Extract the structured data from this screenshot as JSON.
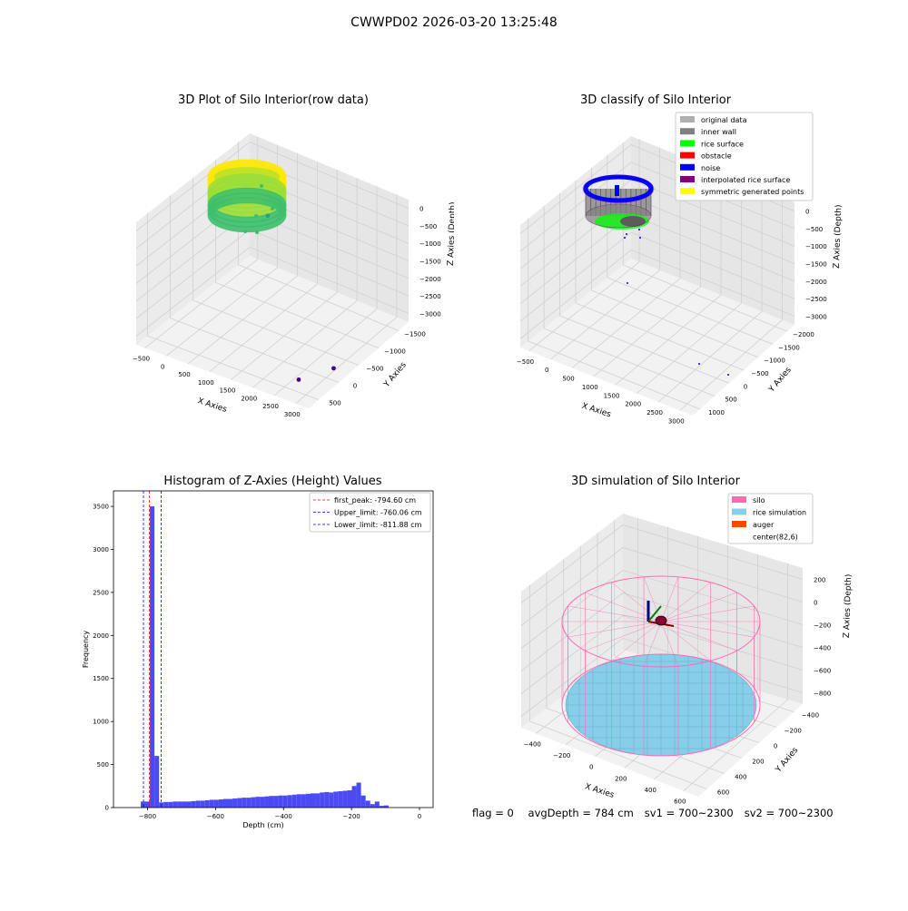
{
  "figure_title": "CWWPD02 2026-03-20 13:25:48",
  "status": {
    "flag": "flag = 0",
    "avg_depth": "avgDepth = 784 cm",
    "sv1": "sv1 = 700~2300",
    "sv2": "sv2 = 700~2300"
  },
  "colors": {
    "raw_gradient": [
      "#ffe800",
      "#9bde36",
      "#3dbf6d",
      "#2a8d8a",
      "#45067a"
    ],
    "original_data": "#b0b0b0",
    "inner_wall": "#808080",
    "rice_surface": "#00ff00",
    "obstacle": "#ff0000",
    "noise": "#0000ff",
    "interpolated": "#800080",
    "symmetric": "#ffff00",
    "histogram_bar": "#4b4bf5",
    "silo": "#ff69b4",
    "rice_simulation": "#87ceeb",
    "auger": "#ff4500"
  },
  "chart_data": [
    {
      "type": "scatter",
      "projection": "3d",
      "title": "3D Plot of Silo Interior(row data)",
      "xlabel": "X Axies",
      "ylabel": "Y Axies",
      "zlabel": "Z Axies (Depth)",
      "x_ticks": [
        "−500",
        "0",
        "500",
        "1000",
        "1500",
        "2000",
        "2500",
        "3000"
      ],
      "y_ticks": [
        "−1500",
        "−1000",
        "−500",
        "0",
        "500"
      ],
      "z_ticks": [
        "0",
        "−500",
        "−1000",
        "−1500",
        "−2000",
        "−2500",
        "−3000"
      ],
      "xlim": [
        -600,
        3100
      ],
      "ylim": [
        -1700,
        650
      ],
      "zlim": [
        -3300,
        100
      ],
      "grid": true,
      "outlier_points": [
        {
          "x": 150,
          "y": 350,
          "z": -1500,
          "color": "#2a9d8f"
        },
        {
          "x": 2700,
          "y": -1500,
          "z": -2900,
          "color": "#45067a"
        },
        {
          "x": 2900,
          "y": -900,
          "z": -3100,
          "color": "#45067a"
        }
      ]
    },
    {
      "type": "scatter",
      "projection": "3d",
      "title": "3D classify of Silo Interior",
      "xlabel": "X Axies",
      "ylabel": "Y Axies",
      "zlabel": "Z Axies (Depth)",
      "x_ticks": [
        "−500",
        "0",
        "500",
        "1000",
        "1500",
        "2000",
        "2500",
        "3000"
      ],
      "y_ticks": [
        "−2000",
        "−1500",
        "−1000",
        "−500",
        "0",
        "500",
        "1000"
      ],
      "z_ticks": [
        "0",
        "−500",
        "−1000",
        "−1500",
        "−2000",
        "−2500",
        "−3000"
      ],
      "xlim": [
        -600,
        3100
      ],
      "ylim": [
        -2200,
        1200
      ],
      "zlim": [
        -3300,
        100
      ],
      "grid": true,
      "legend_position": "top-right",
      "legend": [
        {
          "label": "original data",
          "color": "#b0b0b0"
        },
        {
          "label": "inner wall",
          "color": "#808080"
        },
        {
          "label": "rice surface",
          "color": "#00ff00"
        },
        {
          "label": "obstacle",
          "color": "#ff0000"
        },
        {
          "label": "noise",
          "color": "#0000ff"
        },
        {
          "label": "interpolated rice surface",
          "color": "#800080"
        },
        {
          "label": "symmetric generated points",
          "color": "#ffff00"
        }
      ]
    },
    {
      "type": "bar",
      "title": "Histogram of Z-Axies (Height) Values",
      "xlabel": "Depth (cm)",
      "ylabel": "Frequency",
      "xlim": [
        -900,
        40
      ],
      "ylim": [
        0,
        3680
      ],
      "x_ticks": [
        -800,
        -600,
        -400,
        -200,
        0
      ],
      "y_ticks": [
        0,
        500,
        1000,
        1500,
        2000,
        2500,
        3000,
        3500
      ],
      "bin_start": -820,
      "bin_width": 13.5,
      "values": [
        70,
        70,
        3500,
        600,
        60,
        65,
        65,
        70,
        70,
        70,
        70,
        75,
        80,
        80,
        85,
        90,
        90,
        95,
        100,
        100,
        105,
        110,
        115,
        115,
        120,
        125,
        125,
        130,
        135,
        135,
        140,
        140,
        145,
        150,
        155,
        155,
        160,
        165,
        165,
        175,
        180,
        175,
        185,
        190,
        195,
        200,
        250,
        290,
        140,
        80,
        40,
        70,
        20,
        25
      ],
      "lines": [
        {
          "value": -794.6,
          "label": "first_peak: -794.60 cm",
          "color": "#ff0000"
        },
        {
          "value": -760.06,
          "label": "Upper_limit: -760.06 cm",
          "color": "#0000ff"
        },
        {
          "value": -811.88,
          "label": "Lower_limit: -811.88 cm",
          "color": "#0000ff"
        }
      ],
      "legend_position": "top-right",
      "grid": false
    },
    {
      "type": "surface",
      "projection": "3d",
      "title": "3D simulation of Silo Interior",
      "xlabel": "X Axies",
      "ylabel": "Y Axies",
      "zlabel": "Z Axies (Depth)",
      "x_ticks": [
        "−400",
        "−200",
        "0",
        "200",
        "400",
        "600"
      ],
      "y_ticks": [
        "−400",
        "−200",
        "0",
        "200",
        "400",
        "600"
      ],
      "z_ticks": [
        "200",
        "0",
        "−200",
        "−400",
        "−600",
        "−800"
      ],
      "xlim": [
        -450,
        650
      ],
      "ylim": [
        -450,
        650
      ],
      "zlim": [
        -850,
        300
      ],
      "grid": true,
      "legend_position": "top-right",
      "legend": [
        {
          "label": "silo",
          "color": "#ff69b4"
        },
        {
          "label": "rice simulation",
          "color": "#87ceeb"
        },
        {
          "label": "auger",
          "color": "#ff4500"
        },
        {
          "label": "center(82,6)",
          "color": ""
        }
      ]
    }
  ]
}
